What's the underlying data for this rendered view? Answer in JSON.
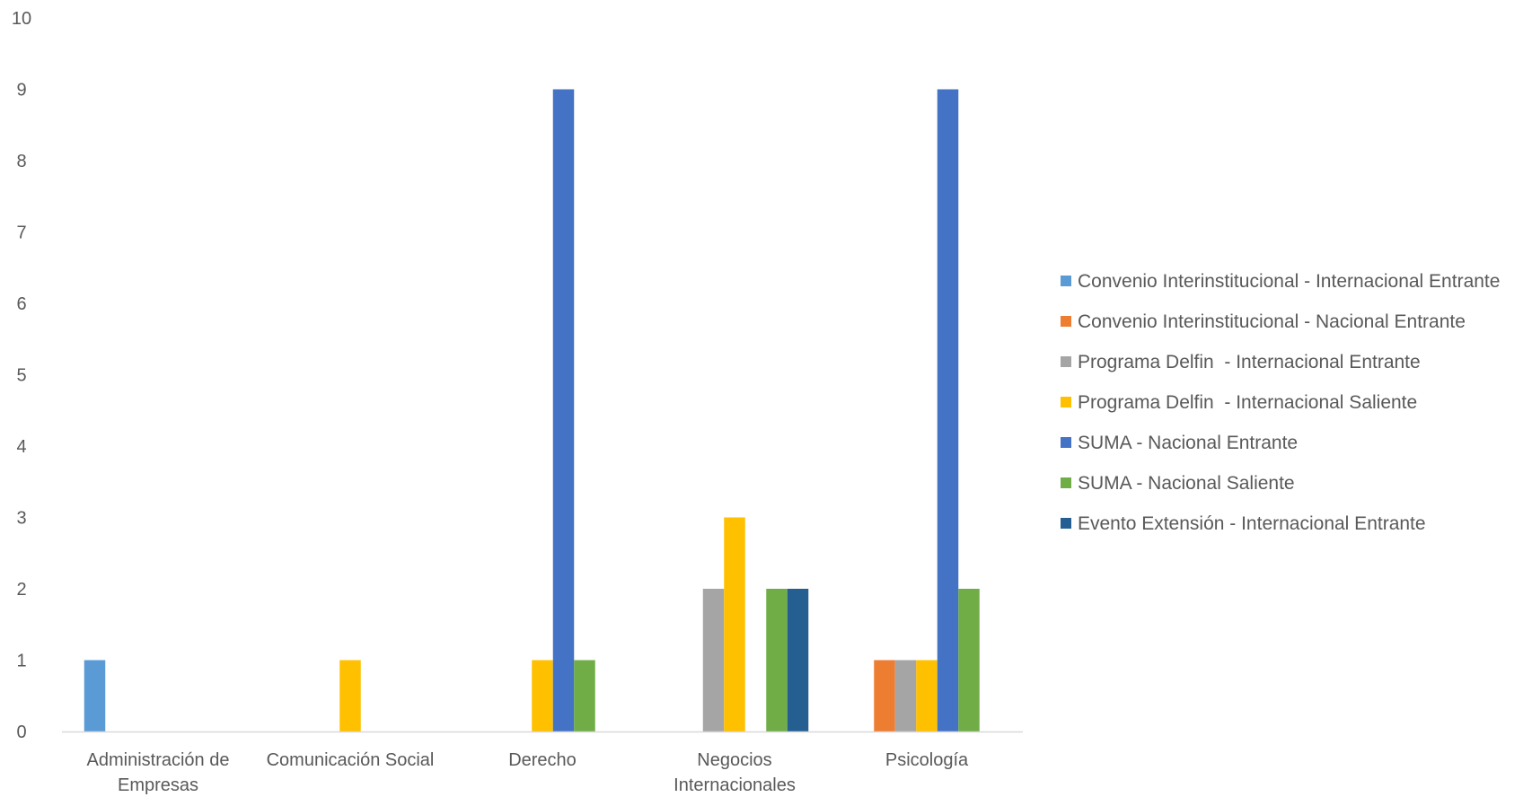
{
  "chart_data": {
    "type": "bar",
    "title": "",
    "xlabel": "",
    "ylabel": "",
    "ylim": [
      0,
      10
    ],
    "yticks": [
      0,
      1,
      2,
      3,
      4,
      5,
      6,
      7,
      8,
      9,
      10
    ],
    "grid": false,
    "legend_position": "right",
    "categories": [
      [
        "Administración de",
        "Empresas"
      ],
      [
        "Comunicación Social"
      ],
      [
        "Derecho"
      ],
      [
        "Negocios",
        "Internacionales"
      ],
      [
        "Psicología"
      ]
    ],
    "series": [
      {
        "name": "Convenio Interinstitucional - Internacional Entrante",
        "color": "#5B9BD5",
        "values": [
          1,
          0,
          0,
          0,
          0
        ]
      },
      {
        "name": "Convenio Interinstitucional - Nacional Entrante",
        "color": "#ED7D31",
        "values": [
          0,
          0,
          0,
          0,
          1
        ]
      },
      {
        "name": "Programa Delfin  - Internacional Entrante",
        "color": "#A5A5A5",
        "values": [
          0,
          0,
          0,
          2,
          1
        ]
      },
      {
        "name": "Programa Delfin  - Internacional Saliente",
        "color": "#FFC000",
        "values": [
          0,
          1,
          1,
          3,
          1
        ]
      },
      {
        "name": "SUMA - Nacional Entrante",
        "color": "#4472C4",
        "values": [
          0,
          0,
          9,
          0,
          9
        ]
      },
      {
        "name": "SUMA - Nacional Saliente",
        "color": "#70AD47",
        "values": [
          0,
          0,
          1,
          2,
          2
        ]
      },
      {
        "name": "Evento Extensión - Internacional Entrante",
        "color": "#255E91",
        "values": [
          0,
          0,
          0,
          2,
          0
        ]
      }
    ]
  }
}
